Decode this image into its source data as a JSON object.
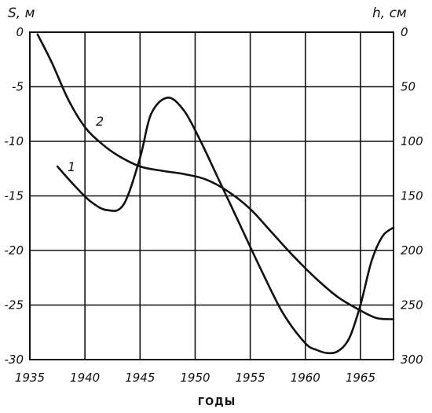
{
  "chart_data": {
    "type": "line",
    "x_title": "ГОДЫ",
    "left_axis": {
      "label": "S, м",
      "ticks": [
        0,
        -5,
        -10,
        -15,
        -20,
        -25,
        -30
      ],
      "range": [
        -30,
        0
      ]
    },
    "right_axis": {
      "label": "h, см",
      "ticks": [
        0,
        50,
        100,
        150,
        200,
        250,
        300
      ],
      "range": [
        0,
        300
      ]
    },
    "x_axis": {
      "ticks": [
        1935,
        1940,
        1945,
        1950,
        1955,
        1960,
        1965
      ],
      "range": [
        1935,
        1968
      ]
    },
    "grid": true,
    "series": [
      {
        "name": "1",
        "axis": "left",
        "x": [
          1937.5,
          1939,
          1940.5,
          1942,
          1943.5,
          1945,
          1946,
          1947.5,
          1949,
          1950.5,
          1952,
          1954,
          1956,
          1958,
          1960,
          1961,
          1962,
          1963,
          1964,
          1965,
          1966,
          1967,
          1968
        ],
        "y": [
          -12.3,
          -14.0,
          -15.5,
          -16.3,
          -15.8,
          -11.5,
          -7.5,
          -6.0,
          -7.2,
          -10.0,
          -13.2,
          -17.5,
          -21.8,
          -25.8,
          -28.5,
          -29.1,
          -29.4,
          -29.2,
          -28.0,
          -25.0,
          -21.0,
          -18.7,
          -17.9
        ]
      },
      {
        "name": "2",
        "axis": "right",
        "x": [
          1935.7,
          1937,
          1938.5,
          1940,
          1941.5,
          1943,
          1945,
          1947,
          1949,
          1951,
          1953,
          1955,
          1957,
          1959,
          1961,
          1963,
          1965,
          1966.5,
          1968
        ],
        "y": [
          2,
          28,
          62,
          87,
          102,
          113,
          123,
          127,
          130,
          135,
          146,
          162,
          184,
          206,
          226,
          243,
          255,
          262,
          263
        ]
      }
    ]
  }
}
